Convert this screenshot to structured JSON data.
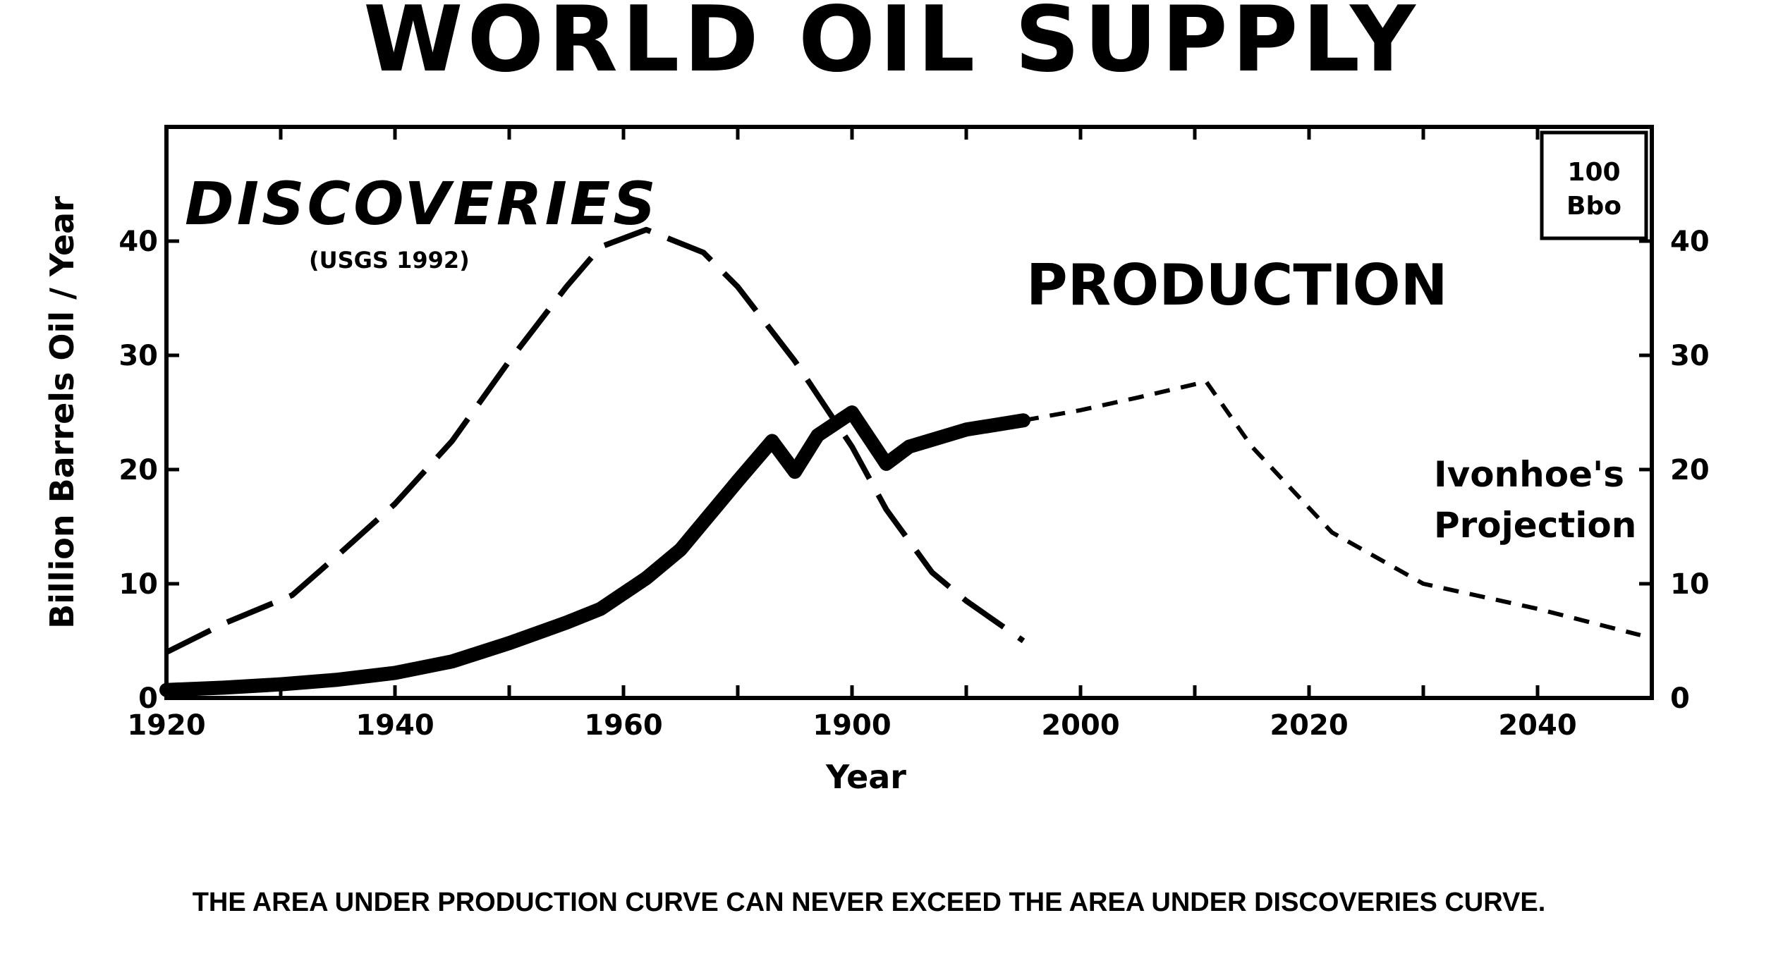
{
  "title": "WORLD OIL SUPPLY",
  "footnote": "THE AREA UNDER PRODUCTION CURVE CAN NEVER EXCEED THE AREA UNDER DISCOVERIES CURVE.",
  "chart_data": {
    "type": "line",
    "title": "WORLD OIL SUPPLY",
    "xlabel": "Year",
    "ylabel": "Billion Barrels Oil / Year",
    "xlim": [
      1920,
      2050
    ],
    "ylim": [
      0,
      50
    ],
    "x_tick_labels": [
      "1920",
      "1940",
      "1960",
      "1900",
      "2000",
      "2020",
      "2040"
    ],
    "y_tick_labels_left": [
      "0",
      "10",
      "20",
      "30",
      "40"
    ],
    "y_tick_labels_right": [
      "0",
      "10",
      "20",
      "30",
      "40"
    ],
    "grid": false,
    "annotations": {
      "discoveries_label": "DISCOVERIES",
      "discoveries_source": "(USGS 1992)",
      "production_label": "PRODUCTION",
      "projection_line1": "Ivonhoe's",
      "projection_line2": "Projection",
      "scale_box_line1": "100",
      "scale_box_line2": "Bbo"
    },
    "series": [
      {
        "name": "DISCOVERIES",
        "style": "long-dash",
        "x": [
          1920,
          1925,
          1931,
          1935,
          1940,
          1945,
          1950,
          1955,
          1958,
          1962,
          1967,
          1970,
          1975,
          1980,
          1983,
          1987,
          1990,
          1995
        ],
        "y": [
          4,
          6.5,
          9,
          12.5,
          17,
          22.5,
          29.5,
          36,
          39.5,
          41,
          39,
          36,
          29.5,
          22,
          16.5,
          11,
          8.5,
          5
        ]
      },
      {
        "name": "PRODUCTION",
        "style": "solid-thick",
        "x": [
          1920,
          1925,
          1930,
          1935,
          1940,
          1945,
          1950,
          1955,
          1958,
          1962,
          1965,
          1970,
          1973,
          1975,
          1977,
          1980,
          1983,
          1985,
          1990,
          1995
        ],
        "y": [
          0.7,
          0.9,
          1.2,
          1.6,
          2.2,
          3.2,
          4.8,
          6.6,
          7.8,
          10.5,
          13,
          19,
          22.5,
          19.8,
          23,
          25,
          20.5,
          22,
          23.5,
          24.3
        ]
      },
      {
        "name": "Ivonhoe's Projection",
        "style": "short-dash",
        "x": [
          1995,
          2000,
          2005,
          2011,
          2015,
          2022,
          2030,
          2040,
          2049
        ],
        "y": [
          24.3,
          25.2,
          26.3,
          27.7,
          22,
          14.5,
          10,
          7.8,
          5.5
        ]
      }
    ]
  }
}
